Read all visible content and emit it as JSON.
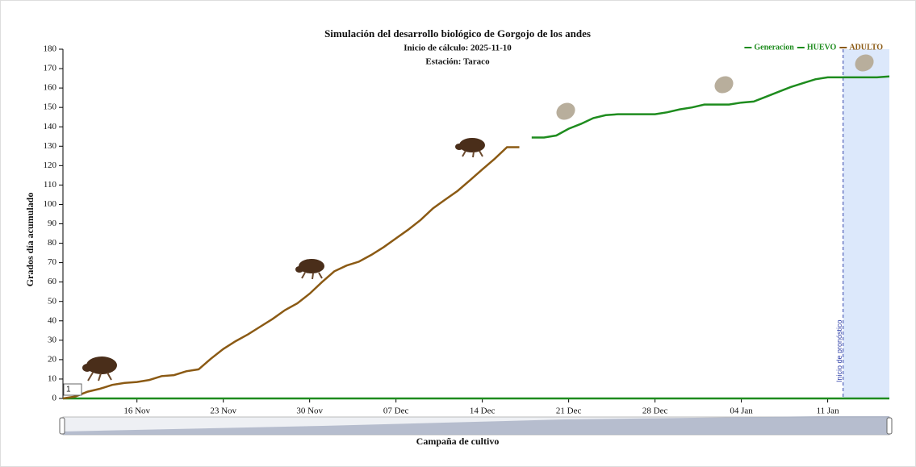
{
  "chart_data": {
    "type": "line",
    "title": "Simulación del desarrollo biológico de Gorgojo de los andes",
    "subtitle": "Inicio de cálculo: 2025-11-10",
    "station": "Estación: Taraco",
    "y_label": "Grados día acumulado",
    "x_label": "Campaña de cultivo",
    "x": [
      0,
      1,
      2,
      3,
      4,
      5,
      6,
      7,
      8,
      9,
      10,
      11,
      12,
      13,
      14,
      15,
      16,
      17,
      18,
      19,
      20,
      21,
      22,
      23,
      24,
      25,
      26,
      27,
      28,
      29,
      30,
      31,
      32,
      33,
      34,
      35,
      36,
      37,
      38,
      39,
      40,
      41,
      42,
      43,
      44,
      45,
      46,
      47,
      48,
      49,
      50,
      51,
      52,
      53,
      54,
      55,
      56,
      57,
      58,
      59,
      60,
      61,
      62,
      63,
      64,
      65,
      66,
      67
    ],
    "xlim": [
      0,
      67
    ],
    "xticks": [
      {
        "value": 6,
        "label": "16 Nov"
      },
      {
        "value": 13,
        "label": "23 Nov"
      },
      {
        "value": 20,
        "label": "30 Nov"
      },
      {
        "value": 27,
        "label": "07 Dec"
      },
      {
        "value": 34,
        "label": "14 Dec"
      },
      {
        "value": 41,
        "label": "21 Dec"
      },
      {
        "value": 48,
        "label": "28 Dec"
      },
      {
        "value": 55,
        "label": "04 Jan"
      },
      {
        "value": 62,
        "label": "11 Jan"
      }
    ],
    "ylim": [
      0,
      180
    ],
    "yticks": [
      0,
      10,
      20,
      30,
      40,
      50,
      60,
      70,
      80,
      90,
      100,
      110,
      120,
      130,
      140,
      150,
      160,
      170,
      180
    ],
    "series": [
      {
        "name": "Generacion",
        "color": "#1e8c1e",
        "values": [
          0,
          0,
          0,
          0,
          0,
          0,
          0,
          0,
          0,
          0,
          0,
          0,
          0,
          0,
          0,
          0,
          0,
          0,
          0,
          0,
          0,
          0,
          0,
          0,
          0,
          0,
          0,
          0,
          0,
          0,
          0,
          0,
          0,
          0,
          0,
          0,
          0,
          0,
          0,
          0,
          0,
          0,
          0,
          0,
          0,
          0,
          0,
          0,
          0,
          0,
          0,
          0,
          0,
          0,
          0,
          0,
          0,
          0,
          0,
          0,
          0,
          0,
          0,
          0,
          0,
          0,
          0,
          0
        ]
      },
      {
        "name": "HUEVO",
        "color": "#1e8c1e",
        "values": [
          null,
          null,
          null,
          null,
          null,
          null,
          null,
          null,
          null,
          null,
          null,
          null,
          null,
          null,
          null,
          null,
          null,
          null,
          null,
          null,
          null,
          null,
          null,
          null,
          null,
          null,
          null,
          null,
          null,
          null,
          null,
          null,
          null,
          null,
          null,
          null,
          null,
          null,
          134.5,
          134.5,
          135.5,
          139,
          141.5,
          144.5,
          146,
          146.5,
          146.5,
          146.5,
          146.5,
          147.5,
          149,
          150,
          151.5,
          151.5,
          151.5,
          152.5,
          153,
          155.5,
          158,
          160.5,
          162.5,
          164.5,
          165.5,
          165.5,
          165.5,
          165.5,
          165.5,
          166
        ]
      },
      {
        "name": "ADULTO",
        "color": "#8b5a14",
        "values": [
          0,
          1,
          3.5,
          5,
          7,
          8,
          8.5,
          9.5,
          11.5,
          12,
          14,
          15,
          20.5,
          25.5,
          29.5,
          33,
          37,
          41,
          45.5,
          49,
          54,
          60,
          65.5,
          68.5,
          70.5,
          74,
          78,
          82.5,
          87,
          92,
          98,
          102.5,
          107,
          112.5,
          118,
          123.5,
          129.5,
          129.5,
          null,
          null,
          null,
          null,
          null,
          null,
          null,
          null,
          null,
          null,
          null,
          null,
          null,
          null,
          null,
          null,
          null,
          null,
          null,
          null,
          null,
          null,
          null,
          null,
          null,
          null,
          null,
          null,
          null,
          null
        ]
      }
    ],
    "generation_label": "1",
    "forecast_start": 63.25,
    "forecast_label": "Inicio de pronóstico",
    "forecast_color": "#dce8fb",
    "grid": false
  }
}
